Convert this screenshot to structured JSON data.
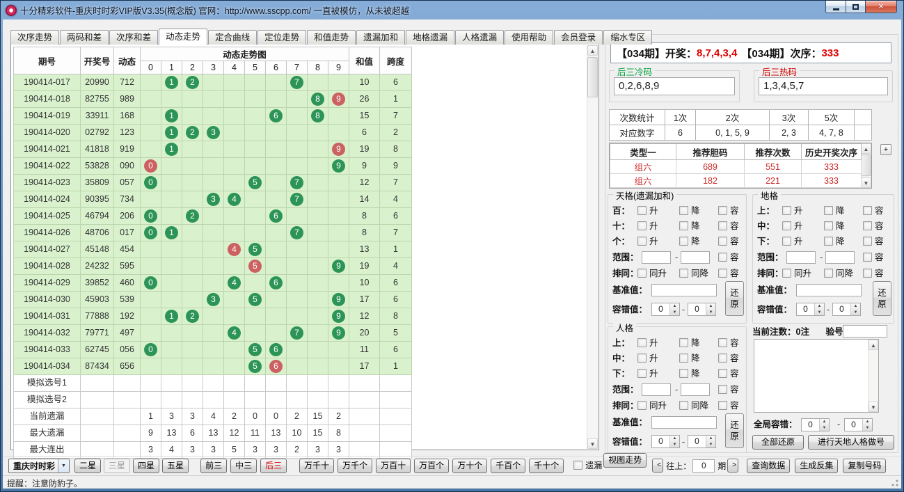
{
  "window": {
    "title": "十分精彩软件-重庆时时彩VIP版V3.35(概念版) 官网：http://www.sscpp.com/ 一直被模仿，从未被超越"
  },
  "icons": {
    "close": "✕",
    "dropdown": "▼",
    "prev": "<",
    "next": ">",
    "scroll_up": "▲",
    "scroll_down": "▼",
    "plus": "+"
  },
  "tabs": {
    "active": "动态走势",
    "items": [
      "次序走势",
      "两码和差",
      "次序和差",
      "动态走势",
      "定合曲线",
      "定位走势",
      "和值走势",
      "遗漏加和",
      "地格遗漏",
      "人格遗漏",
      "使用帮助",
      "会员登录",
      "缩水专区"
    ]
  },
  "trend_table": {
    "col_period": "期号",
    "col_number": "开奖号",
    "col_dynamic": "动态",
    "col_chart": "动态走势图",
    "digit_columns": [
      "0",
      "1",
      "2",
      "3",
      "4",
      "5",
      "6",
      "7",
      "8",
      "9"
    ],
    "col_sum": "和值",
    "col_span": "跨度",
    "rows": [
      {
        "period": "190414-017",
        "number": "20990",
        "dynamic": "712",
        "balls": [
          {
            "col": 1,
            "color": "green"
          },
          {
            "col": 2,
            "color": "green"
          },
          {
            "col": 7,
            "color": "green"
          }
        ],
        "sum": "10",
        "span": "6"
      },
      {
        "period": "190414-018",
        "number": "82755",
        "dynamic": "989",
        "balls": [
          {
            "col": 8,
            "color": "green"
          },
          {
            "col": 9,
            "color": "red"
          }
        ],
        "sum": "26",
        "span": "1"
      },
      {
        "period": "190414-019",
        "number": "33911",
        "dynamic": "168",
        "balls": [
          {
            "col": 1,
            "color": "green"
          },
          {
            "col": 6,
            "color": "green"
          },
          {
            "col": 8,
            "color": "green"
          }
        ],
        "sum": "15",
        "span": "7"
      },
      {
        "period": "190414-020",
        "number": "02792",
        "dynamic": "123",
        "balls": [
          {
            "col": 1,
            "color": "green"
          },
          {
            "col": 2,
            "color": "green"
          },
          {
            "col": 3,
            "color": "green"
          }
        ],
        "sum": "6",
        "span": "2"
      },
      {
        "period": "190414-021",
        "number": "41818",
        "dynamic": "919",
        "balls": [
          {
            "col": 1,
            "color": "green"
          },
          {
            "col": 9,
            "color": "red"
          }
        ],
        "sum": "19",
        "span": "8"
      },
      {
        "period": "190414-022",
        "number": "53828",
        "dynamic": "090",
        "balls": [
          {
            "col": 0,
            "color": "red"
          },
          {
            "col": 9,
            "color": "green"
          }
        ],
        "sum": "9",
        "span": "9"
      },
      {
        "period": "190414-023",
        "number": "35809",
        "dynamic": "057",
        "balls": [
          {
            "col": 0,
            "color": "green"
          },
          {
            "col": 5,
            "color": "green"
          },
          {
            "col": 7,
            "color": "green"
          }
        ],
        "sum": "12",
        "span": "7"
      },
      {
        "period": "190414-024",
        "number": "90395",
        "dynamic": "734",
        "balls": [
          {
            "col": 3,
            "color": "green"
          },
          {
            "col": 4,
            "color": "green"
          },
          {
            "col": 7,
            "color": "green"
          }
        ],
        "sum": "14",
        "span": "4"
      },
      {
        "period": "190414-025",
        "number": "46794",
        "dynamic": "206",
        "balls": [
          {
            "col": 0,
            "color": "green"
          },
          {
            "col": 2,
            "color": "green"
          },
          {
            "col": 6,
            "color": "green"
          }
        ],
        "sum": "8",
        "span": "6"
      },
      {
        "period": "190414-026",
        "number": "48706",
        "dynamic": "017",
        "balls": [
          {
            "col": 0,
            "color": "green"
          },
          {
            "col": 1,
            "color": "green"
          },
          {
            "col": 7,
            "color": "green"
          }
        ],
        "sum": "8",
        "span": "7"
      },
      {
        "period": "190414-027",
        "number": "45148",
        "dynamic": "454",
        "balls": [
          {
            "col": 4,
            "color": "red"
          },
          {
            "col": 5,
            "color": "green"
          }
        ],
        "sum": "13",
        "span": "1"
      },
      {
        "period": "190414-028",
        "number": "24232",
        "dynamic": "595",
        "balls": [
          {
            "col": 5,
            "color": "red"
          },
          {
            "col": 9,
            "color": "green"
          }
        ],
        "sum": "19",
        "span": "4"
      },
      {
        "period": "190414-029",
        "number": "39852",
        "dynamic": "460",
        "balls": [
          {
            "col": 0,
            "color": "green"
          },
          {
            "col": 4,
            "color": "green"
          },
          {
            "col": 6,
            "color": "green"
          }
        ],
        "sum": "10",
        "span": "6"
      },
      {
        "period": "190414-030",
        "number": "45903",
        "dynamic": "539",
        "balls": [
          {
            "col": 3,
            "color": "green"
          },
          {
            "col": 5,
            "color": "green"
          },
          {
            "col": 9,
            "color": "green"
          }
        ],
        "sum": "17",
        "span": "6"
      },
      {
        "period": "190414-031",
        "number": "77888",
        "dynamic": "192",
        "balls": [
          {
            "col": 1,
            "color": "green"
          },
          {
            "col": 2,
            "color": "green"
          },
          {
            "col": 9,
            "color": "green"
          }
        ],
        "sum": "12",
        "span": "8"
      },
      {
        "period": "190414-032",
        "number": "79771",
        "dynamic": "497",
        "balls": [
          {
            "col": 4,
            "color": "green"
          },
          {
            "col": 7,
            "color": "green"
          },
          {
            "col": 9,
            "color": "green"
          }
        ],
        "sum": "20",
        "span": "5"
      },
      {
        "period": "190414-033",
        "number": "62745",
        "dynamic": "056",
        "balls": [
          {
            "col": 0,
            "color": "green"
          },
          {
            "col": 5,
            "color": "green"
          },
          {
            "col": 6,
            "color": "green"
          }
        ],
        "sum": "11",
        "span": "6"
      },
      {
        "period": "190414-034",
        "number": "87434",
        "dynamic": "656",
        "balls": [
          {
            "col": 5,
            "color": "green"
          },
          {
            "col": 6,
            "color": "red"
          }
        ],
        "sum": "17",
        "span": "1"
      }
    ],
    "sim_rows": [
      "模拟选号1",
      "模拟选号2"
    ],
    "stat_rows": [
      {
        "label": "当前遗漏",
        "values": [
          "1",
          "3",
          "3",
          "4",
          "2",
          "0",
          "0",
          "2",
          "15",
          "2"
        ]
      },
      {
        "label": "最大遗漏",
        "values": [
          "9",
          "13",
          "6",
          "13",
          "12",
          "11",
          "13",
          "10",
          "15",
          "8"
        ]
      },
      {
        "label": "最大连出",
        "values": [
          "3",
          "4",
          "3",
          "3",
          "5",
          "3",
          "3",
          "2",
          "3",
          "3"
        ]
      }
    ]
  },
  "query_panel": {
    "title": "时时查询",
    "result": {
      "label_draw": "【034期】开奖：",
      "value_draw": "8,7,4,3,4",
      "label_seq": "【034期】次序：",
      "value_seq": "333"
    },
    "cold": {
      "label": "后三冷码",
      "value": "0,2,6,8,9"
    },
    "hot": {
      "label": "后三热码",
      "value": "1,3,4,5,7"
    },
    "count_table": {
      "headers": [
        "次数统计",
        "1次",
        "2次",
        "3次",
        "5次",
        ""
      ],
      "rows": [
        [
          "对应数字",
          "6",
          "0, 1, 5, 9",
          "2, 3",
          "4, 7, 8",
          ""
        ]
      ]
    },
    "type_table": {
      "headers": [
        "类型一",
        "推荐胆码",
        "推荐次数",
        "历史开奖次序"
      ],
      "rows": [
        [
          "组六",
          "689",
          "551",
          "333"
        ],
        [
          "组六",
          "182",
          "221",
          "333"
        ]
      ]
    },
    "grid_labels": {
      "up": "升",
      "down": "降",
      "allow": "容",
      "range": "范围：",
      "dash": "-",
      "same": "排同：",
      "same_up": "同升",
      "same_down": "同降",
      "base": "基准值：",
      "tolerance": "容错值：",
      "restore": "还原",
      "spin_value": "0"
    },
    "groups": [
      {
        "id": "tiange",
        "title": "天格(遗漏加和)",
        "row_labels": [
          "百：",
          "十：",
          "个："
        ]
      },
      {
        "id": "dige",
        "title": "地格",
        "row_labels": [
          "上：",
          "中：",
          "下："
        ]
      },
      {
        "id": "renge",
        "title": "人格",
        "row_labels": [
          "上：",
          "中：",
          "下："
        ]
      }
    ],
    "bet_zone": {
      "count_label": "当前注数：",
      "count_value": "0注",
      "verify_label": "验号",
      "global_label": "全局容错：",
      "global_v1": "0",
      "global_v2": "0",
      "reset_all": "全部还原",
      "make_numbers": "进行天地人格做号"
    }
  },
  "toolbar": {
    "lottery_select": "重庆时时彩",
    "star_buttons": [
      {
        "label": "二星"
      },
      {
        "label": "三星",
        "disabled": true
      },
      {
        "label": "四星"
      },
      {
        "label": "五星"
      }
    ],
    "section_buttons": [
      {
        "label": "前三"
      },
      {
        "label": "中三"
      },
      {
        "label": "后三",
        "highlight": true
      }
    ],
    "position_buttons": [
      "万千十",
      "万千个",
      "万百十",
      "万百个",
      "万十个",
      "千百个",
      "千十个"
    ],
    "omit_label": "遗漏",
    "chart_button": "视图走势",
    "nav": {
      "label": "往上：",
      "value": "0",
      "unit": "期"
    },
    "action_buttons": [
      "查询数据",
      "生成反集",
      "复制号码"
    ]
  },
  "statusbar": {
    "text": "提醒：注意防豹子。"
  },
  "colors": {
    "ball_green": "#2D9457",
    "ball_red": "#CC6161",
    "value_red": "#E00000",
    "row_green": "#D9F2CD"
  }
}
